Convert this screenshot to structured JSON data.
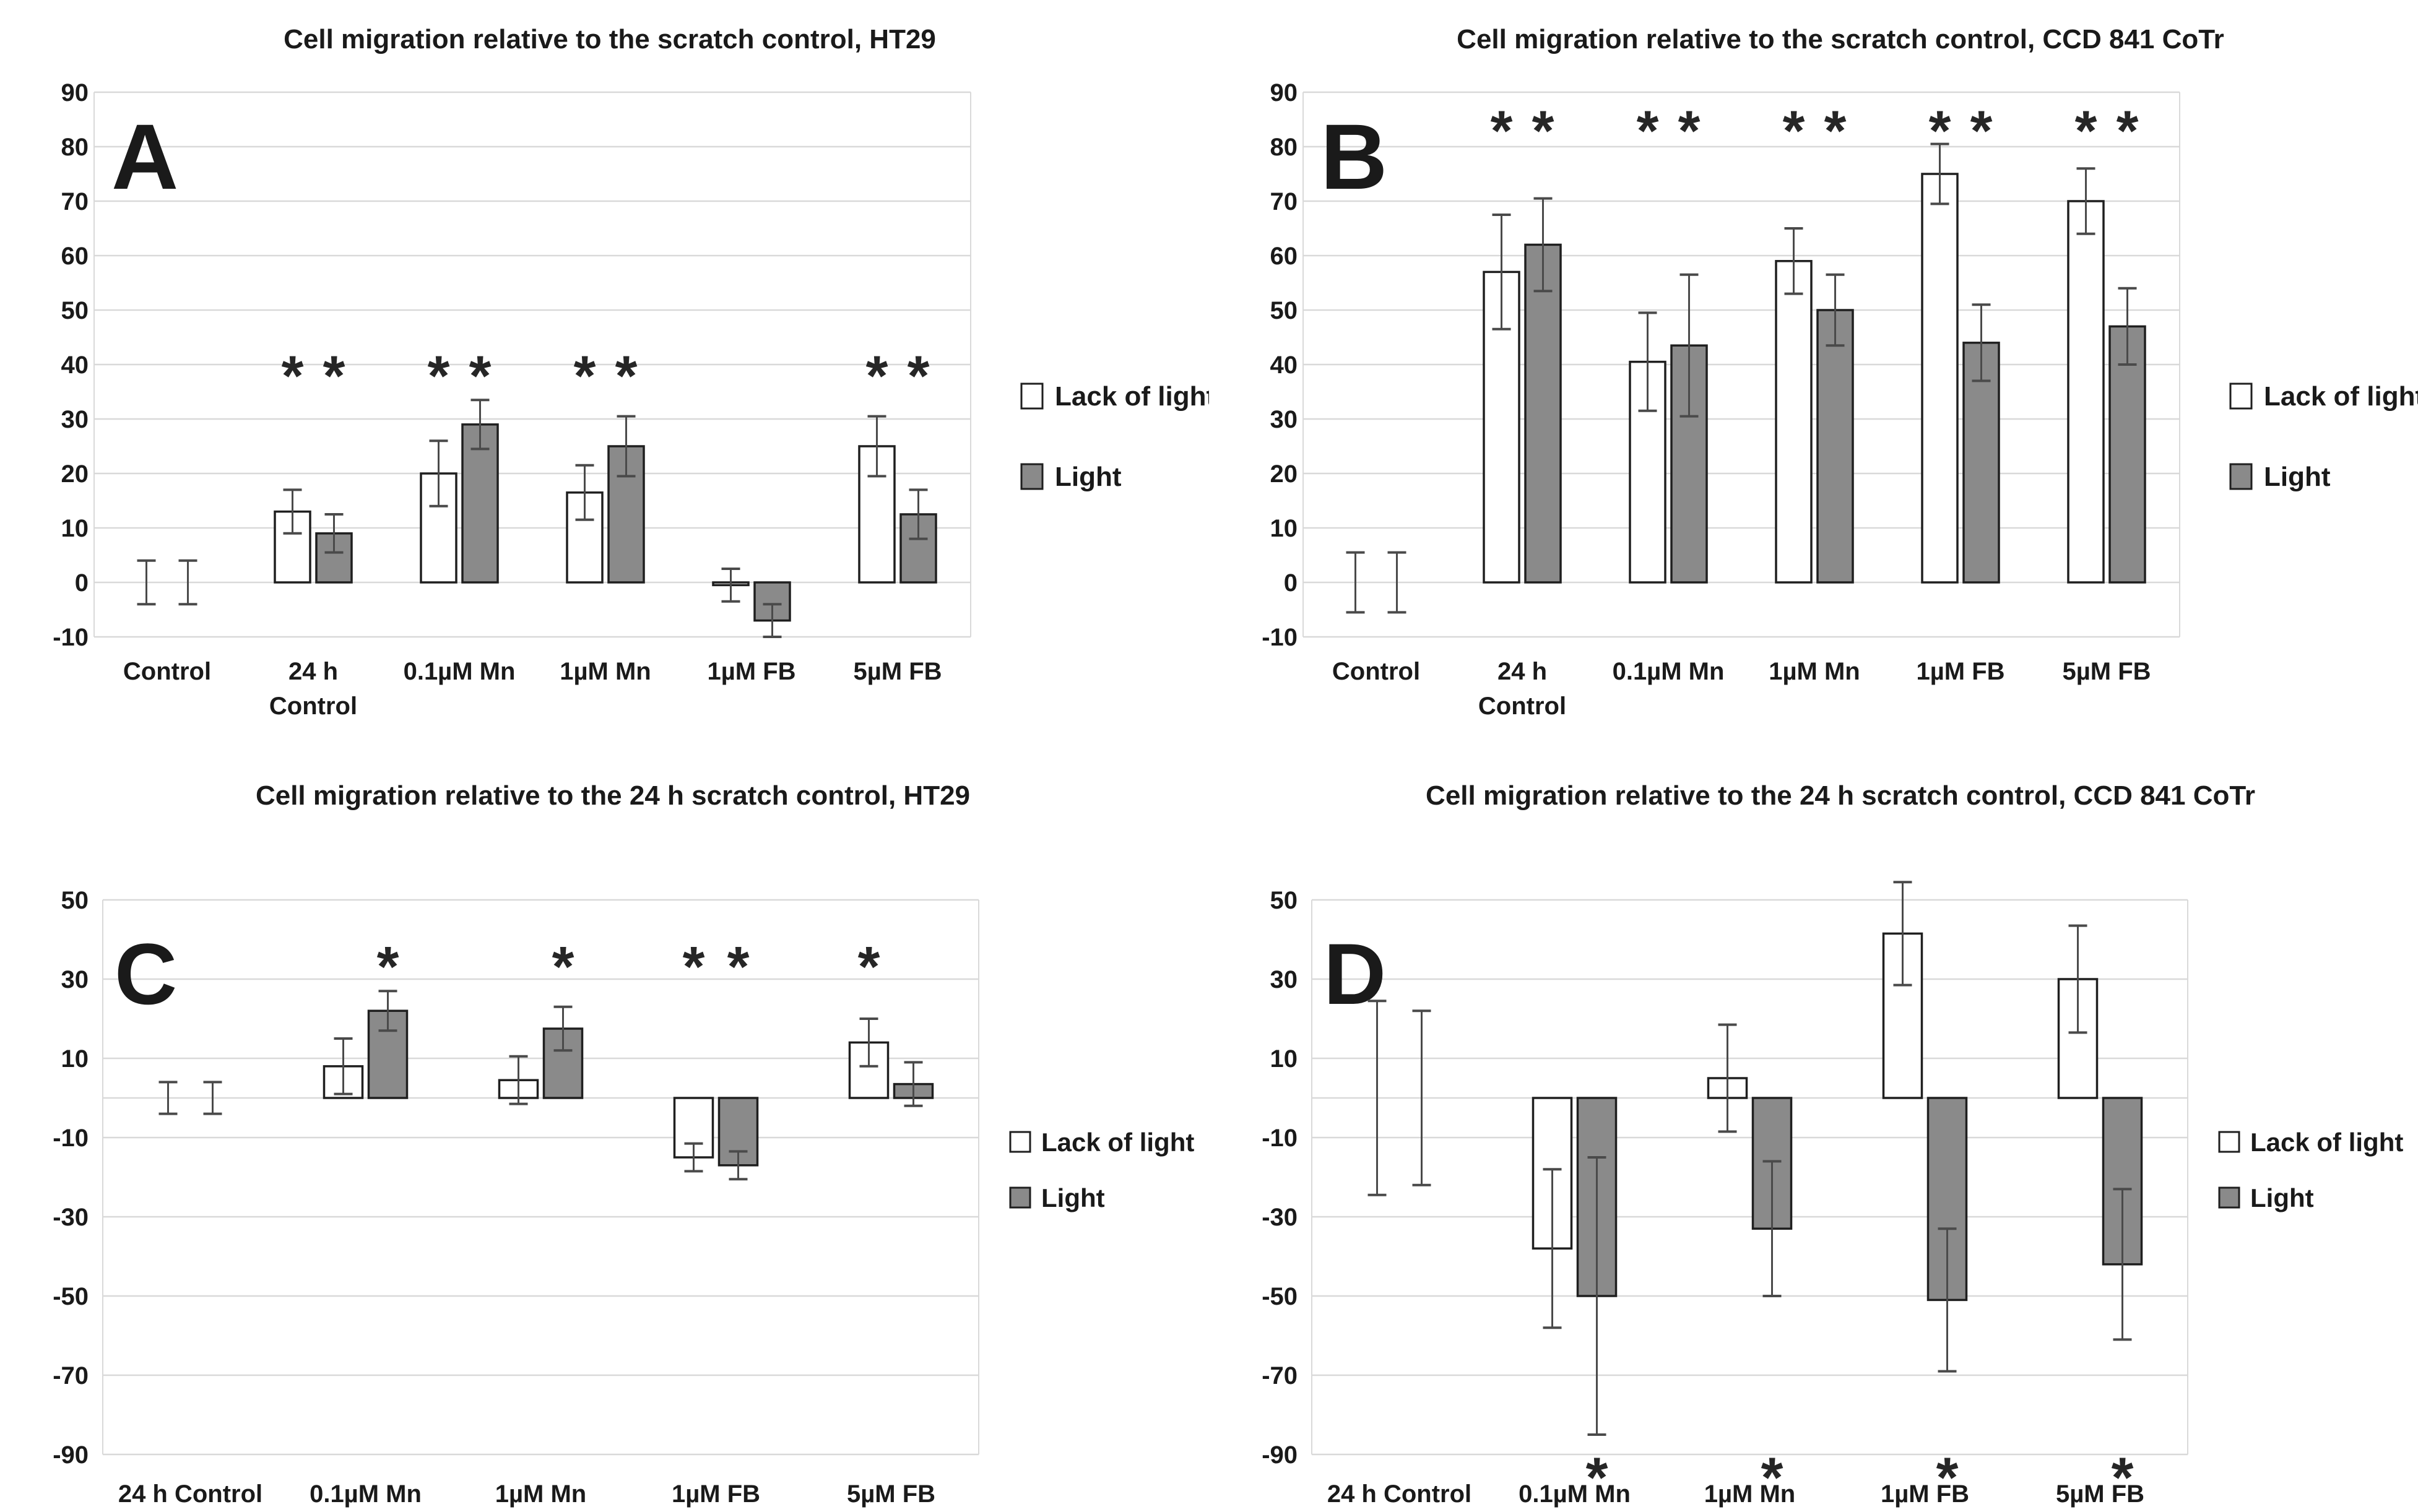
{
  "figure": {
    "background": "#ffffff",
    "text_color": "#1a1a1a",
    "gridline_color": "#d9d9d9",
    "error_bar_color": "#4a4a4a",
    "bar_stroke_color": "#1f1f1f",
    "significance_symbol": "*",
    "legend": {
      "items": [
        {
          "label": "Lack of light",
          "fill": "#ffffff"
        },
        {
          "label": "Light",
          "fill": "#8a8a8a"
        }
      ]
    }
  },
  "chart_data": [
    {
      "panel_letter": "A",
      "type": "bar",
      "title": "Cell migration relative to the scratch control, HT29",
      "categories": [
        "Control",
        "24 h Control",
        "0.1µM Mn",
        "1µM Mn",
        "1µM FB",
        "5µM FB"
      ],
      "category_lines": [
        [
          "Control"
        ],
        [
          "24 h",
          "Control"
        ],
        [
          "0.1µM Mn"
        ],
        [
          "1µM Mn"
        ],
        [
          "1µM FB"
        ],
        [
          "5µM FB"
        ]
      ],
      "ylabel": "",
      "ylim": [
        -10,
        90
      ],
      "yticks": [
        90,
        80,
        70,
        60,
        50,
        40,
        30,
        20,
        10,
        0,
        -10
      ],
      "extra_zero_gridline": false,
      "grid": true,
      "legend_position": "right",
      "sig_marker_y": 40,
      "sig_marker_side": "top",
      "series": [
        {
          "name": "Lack of light",
          "values": [
            0,
            13,
            20,
            16.5,
            -0.5,
            25
          ],
          "errors": [
            4,
            4,
            6,
            5,
            3,
            5.5
          ],
          "significant": [
            false,
            true,
            true,
            true,
            false,
            true
          ]
        },
        {
          "name": "Light",
          "values": [
            0,
            9,
            29,
            25,
            -7,
            12.5
          ],
          "errors": [
            4,
            3.5,
            4.5,
            5.5,
            3,
            4.5
          ],
          "significant": [
            false,
            true,
            true,
            true,
            false,
            true
          ]
        }
      ]
    },
    {
      "panel_letter": "B",
      "type": "bar",
      "title": "Cell migration relative to the scratch control, CCD 841 CoTr",
      "categories": [
        "Control",
        "24 h Control",
        "0.1µM Mn",
        "1µM Mn",
        "1µM FB",
        "5µM FB"
      ],
      "category_lines": [
        [
          "Control"
        ],
        [
          "24 h",
          "Control"
        ],
        [
          "0.1µM Mn"
        ],
        [
          "1µM Mn"
        ],
        [
          "1µM FB"
        ],
        [
          "5µM FB"
        ]
      ],
      "ylabel": "",
      "ylim": [
        -10,
        90
      ],
      "yticks": [
        90,
        80,
        70,
        60,
        50,
        40,
        30,
        20,
        10,
        0,
        -10
      ],
      "extra_zero_gridline": false,
      "grid": true,
      "legend_position": "right",
      "sig_marker_y": 85,
      "sig_marker_side": "top",
      "series": [
        {
          "name": "Lack of light",
          "values": [
            0,
            57,
            40.5,
            59,
            75,
            70
          ],
          "errors": [
            5.5,
            10.5,
            9,
            6,
            5.5,
            6
          ],
          "significant": [
            false,
            true,
            true,
            true,
            true,
            true
          ]
        },
        {
          "name": "Light",
          "values": [
            0,
            62,
            43.5,
            50,
            44,
            47
          ],
          "errors": [
            5.5,
            8.5,
            13,
            6.5,
            7,
            7
          ],
          "significant": [
            false,
            true,
            true,
            true,
            true,
            true
          ]
        }
      ]
    },
    {
      "panel_letter": "C",
      "type": "bar",
      "title": "Cell migration relative to the 24 h scratch control, HT29",
      "categories": [
        "24 h Control",
        "0.1µM Mn",
        "1µM Mn",
        "1µM FB",
        "5µM FB"
      ],
      "category_lines": [
        [
          "24 h Control"
        ],
        [
          "0.1µM Mn"
        ],
        [
          "1µM Mn"
        ],
        [
          "1µM FB"
        ],
        [
          "5µM FB"
        ]
      ],
      "ylabel": "",
      "ylim": [
        -90,
        50
      ],
      "yticks": [
        50,
        30,
        10,
        -10,
        -30,
        -50,
        -70,
        -90
      ],
      "extra_zero_gridline": true,
      "grid": true,
      "legend_position": "right",
      "sig_marker_y": 36,
      "sig_marker_side": "top",
      "series": [
        {
          "name": "Lack of light",
          "values": [
            0,
            8,
            4.5,
            -15,
            14
          ],
          "errors": [
            4,
            7,
            6,
            3.5,
            6
          ],
          "significant": [
            false,
            false,
            false,
            true,
            true
          ]
        },
        {
          "name": "Light",
          "values": [
            0,
            22,
            17.5,
            -17,
            3.5
          ],
          "errors": [
            4,
            5,
            5.5,
            3.5,
            5.5
          ],
          "significant": [
            false,
            true,
            true,
            true,
            false
          ]
        }
      ]
    },
    {
      "panel_letter": "D",
      "type": "bar",
      "title": "Cell migration relative to the 24 h scratch control, CCD 841 CoTr",
      "categories": [
        "24 h Control",
        "0.1µM Mn",
        "1µM Mn",
        "1µM FB",
        "5µM FB"
      ],
      "category_lines": [
        [
          "24 h Control"
        ],
        [
          "0.1µM Mn"
        ],
        [
          "1µM Mn"
        ],
        [
          "1µM FB"
        ],
        [
          "5µM FB"
        ]
      ],
      "ylabel": "",
      "ylim": [
        -90,
        50
      ],
      "yticks": [
        50,
        30,
        10,
        -10,
        -30,
        -50,
        -70,
        -90
      ],
      "extra_zero_gridline": true,
      "grid": true,
      "legend_position": "right",
      "sig_marker_y": -93,
      "sig_marker_side": "bottom",
      "series": [
        {
          "name": "Lack of light",
          "values": [
            0,
            -38,
            5,
            41.5,
            30
          ],
          "errors": [
            24.5,
            20,
            13.5,
            13,
            13.5
          ],
          "significant": [
            false,
            false,
            false,
            false,
            false
          ]
        },
        {
          "name": "Light",
          "values": [
            0,
            -50,
            -33,
            -51,
            -42
          ],
          "errors": [
            22,
            35,
            17,
            18,
            19
          ],
          "significant": [
            false,
            true,
            true,
            true,
            true
          ]
        }
      ]
    }
  ]
}
